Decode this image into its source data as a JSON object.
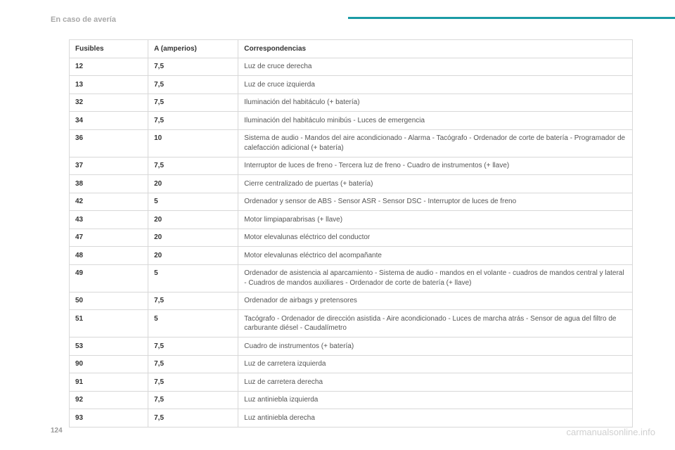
{
  "header": {
    "section_title": "En caso de avería"
  },
  "table": {
    "headers": {
      "fuse": "Fusibles",
      "amperage": "A (amperios)",
      "correspondence": "Correspondencias"
    },
    "rows": [
      {
        "fuse": "12",
        "amp": "7,5",
        "desc": "Luz de cruce derecha"
      },
      {
        "fuse": "13",
        "amp": "7,5",
        "desc": "Luz de cruce izquierda"
      },
      {
        "fuse": "32",
        "amp": "7,5",
        "desc": "Iluminación del habitáculo (+ batería)"
      },
      {
        "fuse": "34",
        "amp": "7,5",
        "desc": "Iluminación del habitáculo minibús - Luces de emergencia"
      },
      {
        "fuse": "36",
        "amp": "10",
        "desc": "Sistema de audio - Mandos del aire acondicionado - Alarma - Tacógrafo - Ordenador de corte de batería - Programador de calefacción adicional (+ batería)"
      },
      {
        "fuse": "37",
        "amp": "7,5",
        "desc": "Interruptor de luces de freno - Tercera luz de freno - Cuadro de instrumentos (+ llave)"
      },
      {
        "fuse": "38",
        "amp": "20",
        "desc": "Cierre centralizado de puertas (+ batería)"
      },
      {
        "fuse": "42",
        "amp": "5",
        "desc": "Ordenador y sensor de ABS - Sensor ASR - Sensor DSC - Interruptor de luces de freno"
      },
      {
        "fuse": "43",
        "amp": "20",
        "desc": "Motor limpiaparabrisas (+ llave)"
      },
      {
        "fuse": "47",
        "amp": "20",
        "desc": "Motor elevalunas eléctrico del conductor"
      },
      {
        "fuse": "48",
        "amp": "20",
        "desc": "Motor elevalunas eléctrico del acompañante"
      },
      {
        "fuse": "49",
        "amp": "5",
        "desc": "Ordenador de asistencia al aparcamiento - Sistema de audio - mandos en el volante - cuadros de mandos central y lateral - Cuadros de mandos auxiliares - Ordenador de corte de batería (+ llave)"
      },
      {
        "fuse": "50",
        "amp": "7,5",
        "desc": "Ordenador de airbags y pretensores"
      },
      {
        "fuse": "51",
        "amp": "5",
        "desc": "Tacógrafo - Ordenador de dirección asistida - Aire acondicionado - Luces de marcha atrás - Sensor de agua del filtro de carburante diésel - Caudalímetro"
      },
      {
        "fuse": "53",
        "amp": "7,5",
        "desc": "Cuadro de instrumentos (+ batería)"
      },
      {
        "fuse": "90",
        "amp": "7,5",
        "desc": "Luz de carretera izquierda"
      },
      {
        "fuse": "91",
        "amp": "7,5",
        "desc": "Luz de carretera derecha"
      },
      {
        "fuse": "92",
        "amp": "7,5",
        "desc": "Luz antiniebla izquierda"
      },
      {
        "fuse": "93",
        "amp": "7,5",
        "desc": "Luz antiniebla derecha"
      }
    ]
  },
  "footer": {
    "page_number": "124",
    "watermark": "carmanualsonline.info"
  },
  "style": {
    "accent_color": "#1a9ba5",
    "header_text_color": "#a8a8a8",
    "border_color": "#d8d8d8",
    "cell_text_color": "#555555",
    "bold_text_color": "#333333",
    "watermark_color": "#d0d0d0",
    "background_color": "#ffffff"
  }
}
